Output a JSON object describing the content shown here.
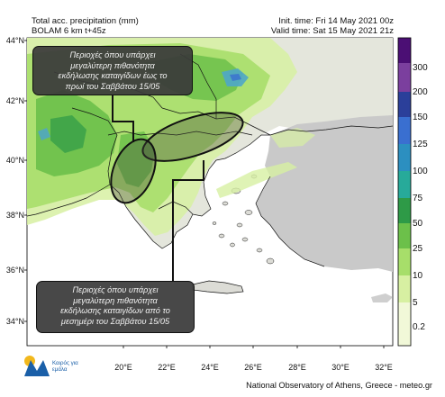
{
  "header": {
    "left_line1": "Total acc. precipitation (mm)",
    "left_line2": "BOLAM 6 km t+45z",
    "right_line1": "Init. time: Fri 14 May 2021 00z",
    "right_line2": "Valid time: Sat 15 May 2021 21z"
  },
  "axes": {
    "lat_ticks": [
      "44°N",
      "42°N",
      "40°N",
      "38°N",
      "36°N",
      "34°N"
    ],
    "lon_ticks": [
      "20°E",
      "22°E",
      "24°E",
      "26°E",
      "28°E",
      "30°E",
      "32°E"
    ]
  },
  "colorbar": {
    "levels": [
      "300",
      "200",
      "150",
      "125",
      "100",
      "75",
      "50",
      "25",
      "10",
      "5",
      "0.2"
    ],
    "colors": [
      "#4b0f74",
      "#7b3f9e",
      "#2b3f9a",
      "#3a6fd0",
      "#2c8fc0",
      "#27aa9a",
      "#2e9a47",
      "#6cc04a",
      "#a7de6a",
      "#d7f0a2",
      "#f1f8d8"
    ]
  },
  "callouts": {
    "top": [
      "Περιοχές όπου υπάρχει",
      "μεγαλύτερη πιθανότητα",
      "εκδήλωσης καταιγίδων  έως το",
      "πρωί του Σαββάτου 15/05"
    ],
    "bottom": [
      "Περιοχές όπου υπάρχει",
      "μεγαλύτερη πιθανότητα",
      "εκδήλωσης καταιγίδων από το",
      "μεσημέρι του Σαββάτου 15/05"
    ]
  },
  "logo": {
    "text": "Καιρός για εμάλα"
  },
  "footer": "National Observatory of Athens, Greece - meteo.gr",
  "colors": {
    "land": "#e9e9e3",
    "sea": "#ffffff",
    "neighbor": "#c6c6c6",
    "rain_light": "#d7f0a2",
    "rain_mid": "#a7de6a",
    "rain_heavy": "#6cc04a",
    "rain_blue": "#4fa6c8",
    "callout_bg": "#3a3a3a"
  }
}
